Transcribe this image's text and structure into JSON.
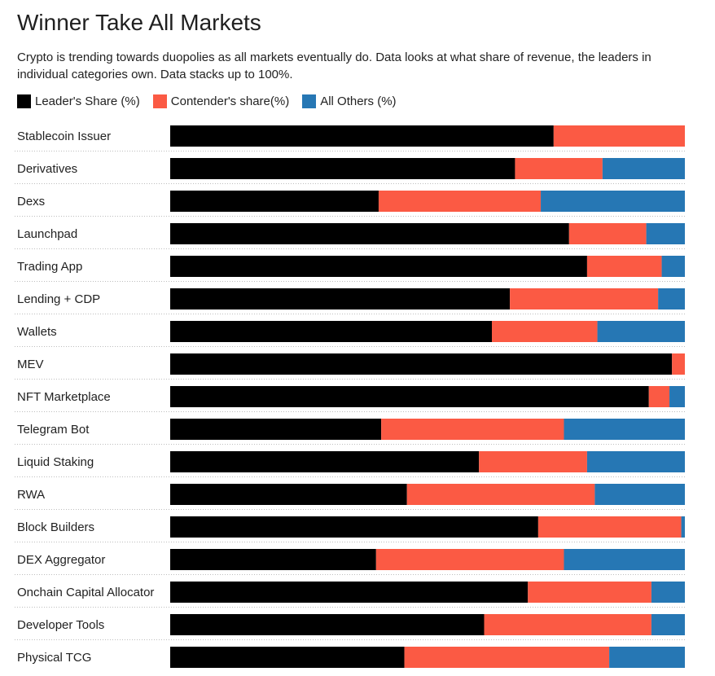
{
  "title": "Winner Take All Markets",
  "subtitle": "Crypto is trending towards duopolies as all markets eventually do. Data looks at what share of revenue, the leaders in individual categories own. Data stacks up to 100%.",
  "colors": {
    "leader": "#000000",
    "contender": "#fb5a44",
    "others": "#2677b4"
  },
  "chart_data": {
    "type": "bar",
    "orientation": "horizontal",
    "stacked": true,
    "xlim": [
      0,
      100
    ],
    "legend_position": "top-left",
    "categories": [
      "Stablecoin Issuer",
      "Derivatives",
      "Dexs",
      "Launchpad",
      "Trading App",
      "Lending + CDP",
      "Wallets",
      "MEV",
      "NFT Marketplace",
      "Telegram Bot",
      "Liquid Staking",
      "RWA",
      "Block Builders",
      "DEX Aggregator",
      "Onchain Capital Allocator",
      "Developer Tools",
      "Physical TCG"
    ],
    "series": [
      {
        "name": "Leader's Share (%)",
        "color": "#000000",
        "values": [
          74.5,
          67,
          40.5,
          77.5,
          81,
          66,
          62.5,
          97.5,
          93,
          41,
          60,
          46,
          71.5,
          40,
          69.5,
          61,
          45.5
        ]
      },
      {
        "name": "Contender's share(%)",
        "color": "#fb5a44",
        "values": [
          25.5,
          17,
          31.5,
          15,
          14.5,
          28.8,
          20.5,
          2.5,
          4,
          35.5,
          21,
          36.5,
          27.8,
          36.5,
          24,
          32.5,
          39.8
        ]
      },
      {
        "name": "All Others (%)",
        "color": "#2677b4",
        "values": [
          0,
          16,
          28,
          7.5,
          4.5,
          5.2,
          17,
          0,
          3,
          23.5,
          19,
          17.5,
          0.7,
          23.5,
          6.5,
          6.5,
          14.7
        ]
      }
    ]
  }
}
